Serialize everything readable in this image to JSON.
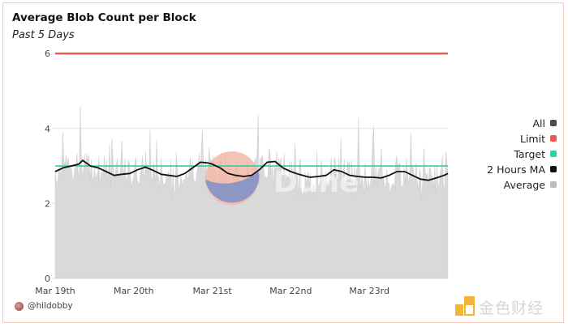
{
  "title": "Average Blob Count per Block",
  "subtitle": "Past 5 Days",
  "author": "@hildobby",
  "watermark": {
    "brand": "Dune",
    "corner_text": "金色财经"
  },
  "legend": [
    {
      "label": "All",
      "color": "#4a4a4a"
    },
    {
      "label": "Limit",
      "color": "#ef5a4f"
    },
    {
      "label": "Target",
      "color": "#2ad0a6"
    },
    {
      "label": "2 Hours MA",
      "color": "#111111"
    },
    {
      "label": "Average",
      "color": "#bdbdbd"
    }
  ],
  "chart_data": {
    "type": "area",
    "ylim": [
      0,
      6.5
    ],
    "yticks": [
      0,
      2,
      4,
      6
    ],
    "x_tick_labels": [
      "Mar 19th",
      "Mar 20th",
      "Mar 21st",
      "Mar 22nd",
      "Mar 23rd"
    ],
    "grid": true,
    "legend_position": "right",
    "limit": 6,
    "target": 3,
    "series": [
      {
        "name": "2 Hours MA",
        "x_days": [
          0,
          0.1,
          0.2,
          0.3,
          0.35,
          0.45,
          0.55,
          0.65,
          0.75,
          0.85,
          0.95,
          1.05,
          1.15,
          1.25,
          1.35,
          1.45,
          1.55,
          1.65,
          1.75,
          1.85,
          1.95,
          2.0,
          2.1,
          2.2,
          2.3,
          2.4,
          2.5,
          2.6,
          2.7,
          2.8,
          2.9,
          3.0,
          3.1,
          3.2,
          3.25,
          3.35,
          3.45,
          3.55,
          3.65,
          3.75,
          3.85,
          3.95,
          4.05,
          4.15,
          4.25,
          4.35,
          4.45,
          4.55,
          4.65,
          4.75,
          4.85,
          4.95,
          5.0
        ],
        "values": [
          2.85,
          2.95,
          3.0,
          3.05,
          3.15,
          3.0,
          2.95,
          2.85,
          2.75,
          2.78,
          2.8,
          2.9,
          2.97,
          2.88,
          2.78,
          2.75,
          2.72,
          2.8,
          2.95,
          3.1,
          3.08,
          3.05,
          2.95,
          2.8,
          2.75,
          2.72,
          2.75,
          2.9,
          3.1,
          3.12,
          2.95,
          2.85,
          2.78,
          2.72,
          2.7,
          2.72,
          2.75,
          2.9,
          2.85,
          2.75,
          2.72,
          2.7,
          2.7,
          2.68,
          2.75,
          2.85,
          2.85,
          2.75,
          2.65,
          2.62,
          2.68,
          2.75,
          2.8
        ]
      },
      {
        "name": "Average",
        "baseline": 2.8,
        "spike_range": [
          2.1,
          4.6
        ]
      }
    ]
  }
}
